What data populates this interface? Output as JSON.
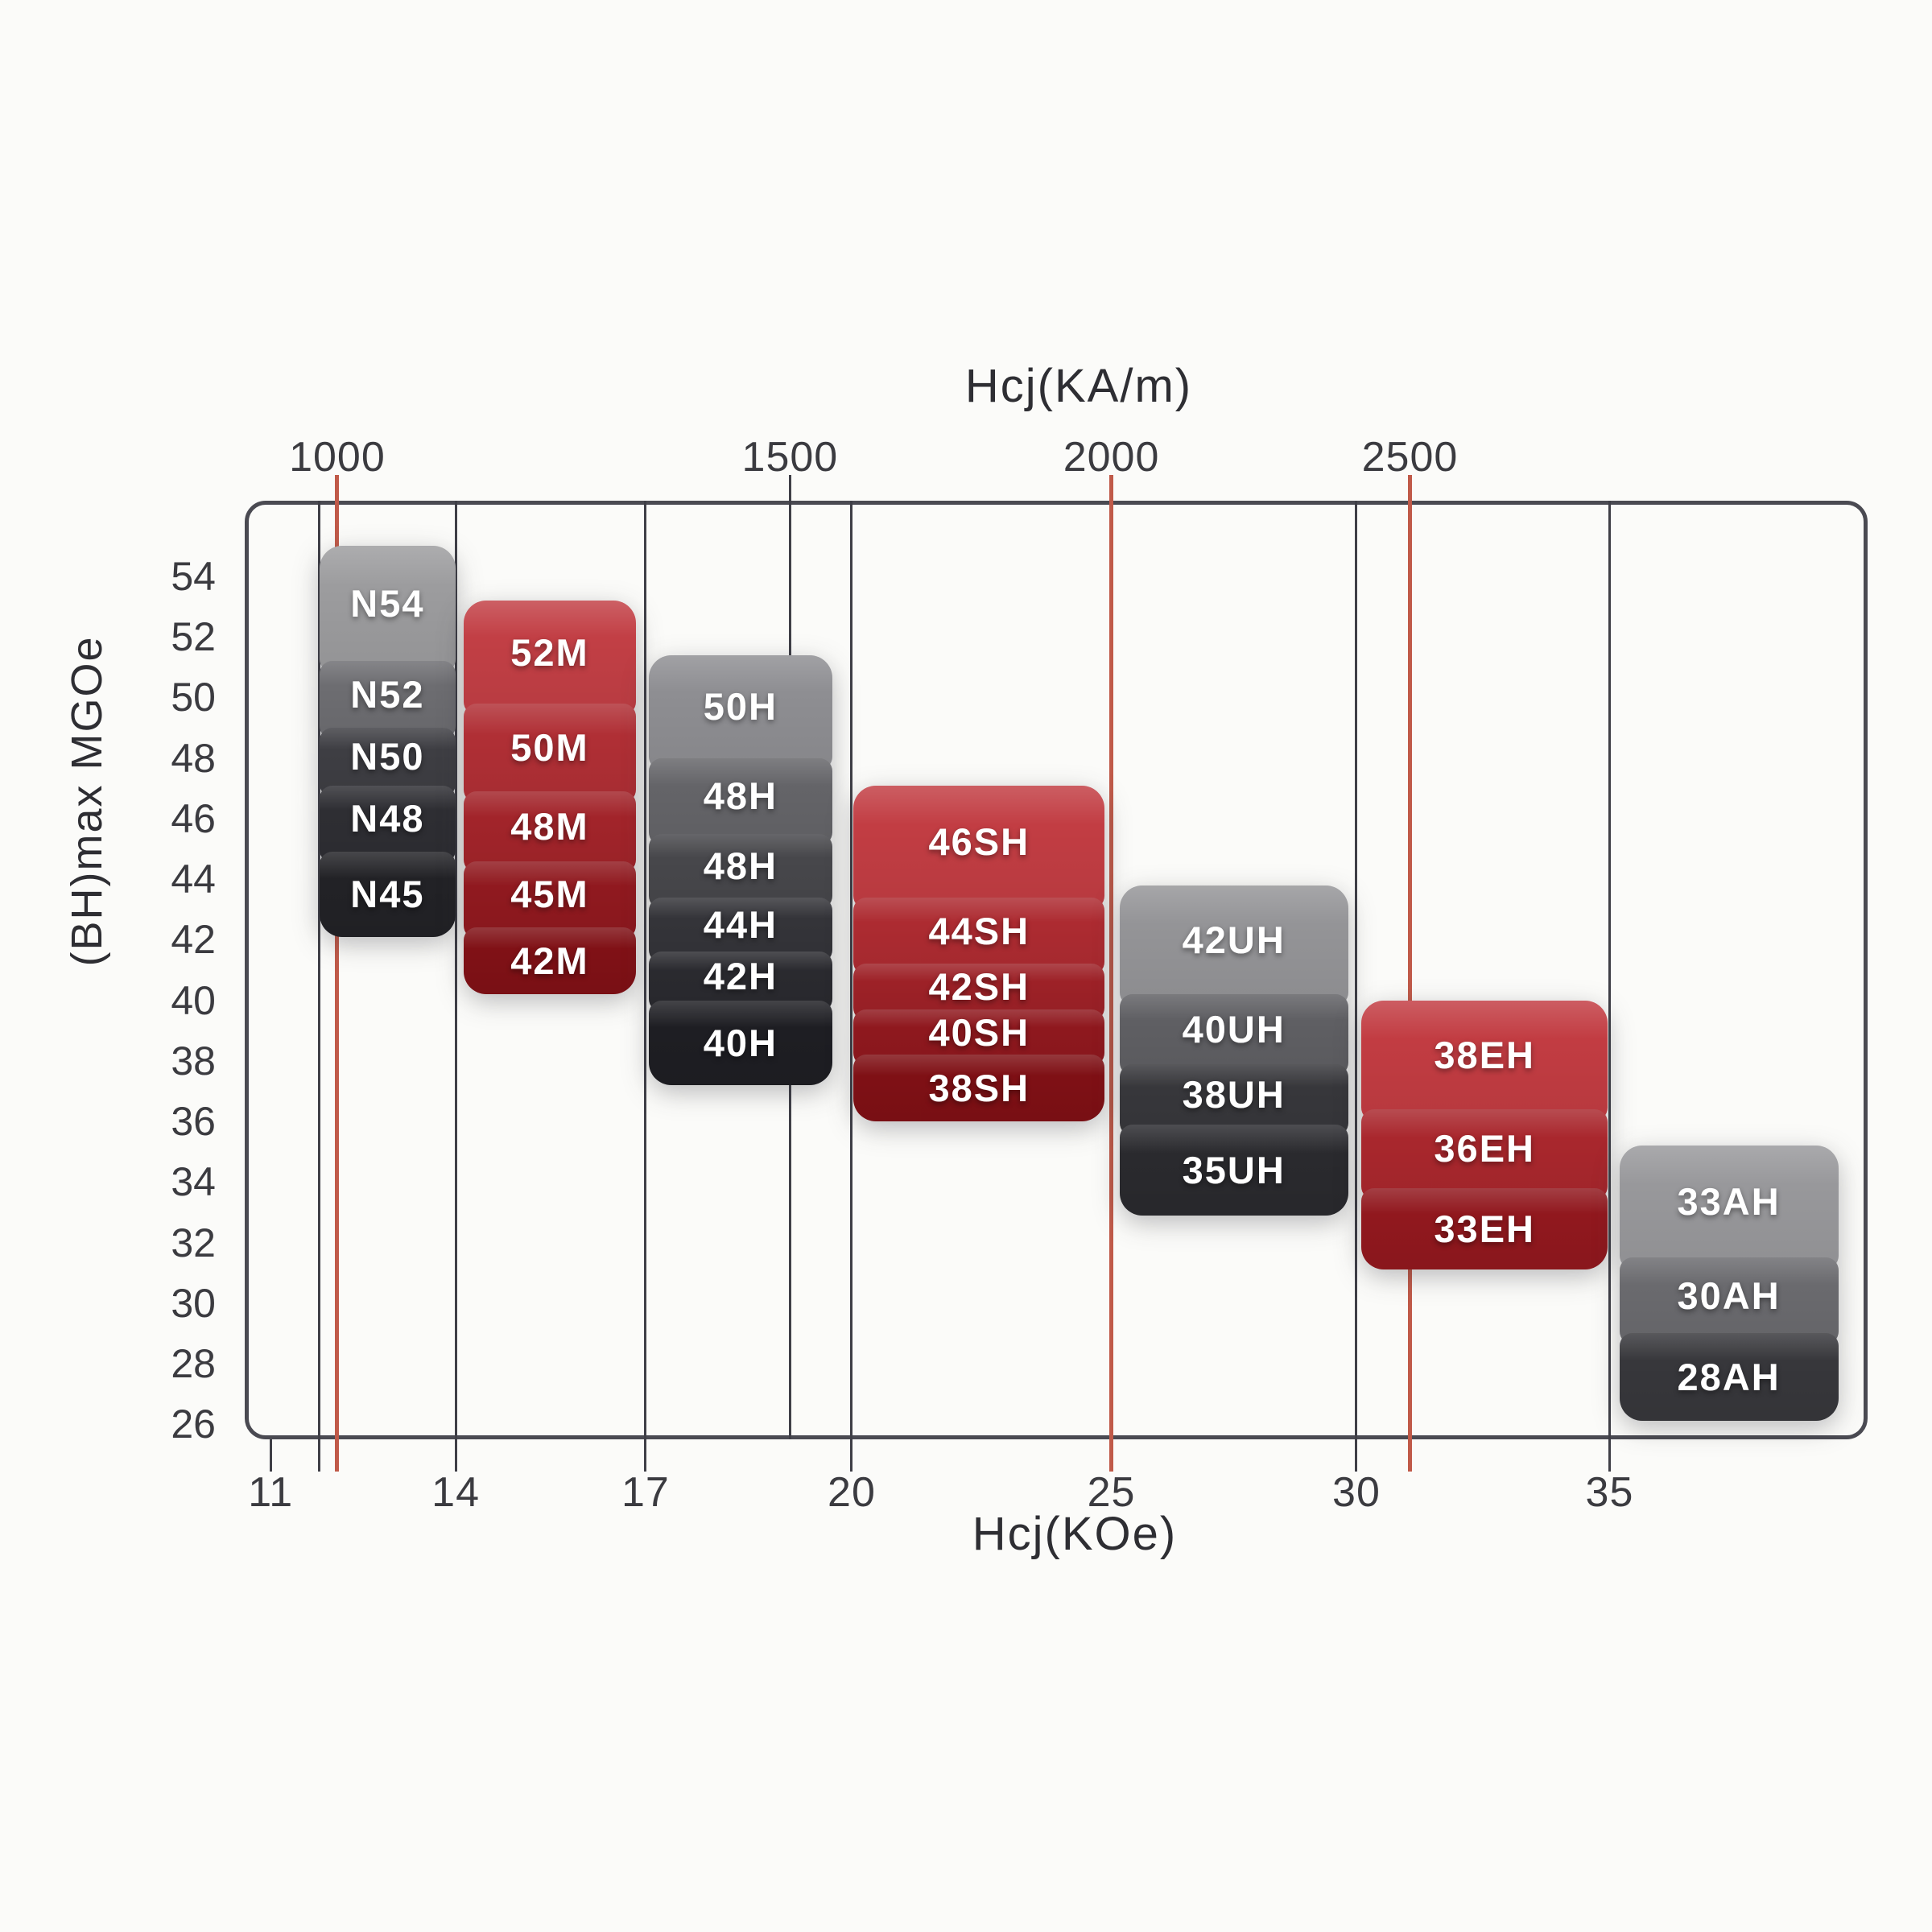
{
  "page": {
    "background": "#fbfbf9"
  },
  "chart_data": {
    "type": "bar",
    "subtype": "floating-grade-range-blocks",
    "title_top_axis": "Hcj(KA/m)",
    "xlabel_bottom_axis": "Hcj(KOe)",
    "ylabel": "(BH)max MGOe",
    "grid": "vertical-only",
    "legend": "none",
    "y_axis": {
      "min": 25.5,
      "max": 56.5,
      "unit": "MGOe",
      "ticks": [
        54,
        52,
        50,
        48,
        46,
        44,
        42,
        40,
        38,
        36,
        34,
        32,
        30,
        28,
        26
      ]
    },
    "x_axis_bottom": {
      "unit": "KOe",
      "ticks": [
        11,
        14,
        17,
        20,
        25,
        30,
        35
      ]
    },
    "x_axis_top": {
      "unit": "KA/m",
      "ticks": [
        1000,
        1500,
        2000,
        2500
      ]
    },
    "colors": {
      "grid_black": "#3f3f47",
      "grid_red": "#c05a49",
      "frame": "#4a4a52",
      "axis_text": "#3b3b40",
      "title_text": "#2e2e33",
      "block_text": "#ffffff"
    },
    "gridlines": [
      {
        "pct": 1.6,
        "color": "black",
        "interior": false,
        "tick_above": false,
        "tick_below": true,
        "top_label": "",
        "bottom_label": "11"
      },
      {
        "pct": 4.6,
        "color": "black",
        "interior": true,
        "tick_above": false,
        "tick_below": true,
        "top_label": "",
        "bottom_label": ""
      },
      {
        "pct": 5.7,
        "color": "red",
        "interior": true,
        "tick_above": true,
        "tick_below": true,
        "top_label": "1000",
        "bottom_label": ""
      },
      {
        "pct": 13.0,
        "color": "black",
        "interior": true,
        "tick_above": false,
        "tick_below": true,
        "top_label": "",
        "bottom_label": "14"
      },
      {
        "pct": 24.7,
        "color": "black",
        "interior": true,
        "tick_above": false,
        "tick_below": true,
        "top_label": "",
        "bottom_label": "17"
      },
      {
        "pct": 33.6,
        "color": "black",
        "interior": true,
        "tick_above": true,
        "tick_below": false,
        "top_label": "1500",
        "bottom_label": ""
      },
      {
        "pct": 37.4,
        "color": "black",
        "interior": true,
        "tick_above": false,
        "tick_below": true,
        "top_label": "",
        "bottom_label": "20"
      },
      {
        "pct": 53.4,
        "color": "red",
        "interior": true,
        "tick_above": true,
        "tick_below": true,
        "top_label": "2000",
        "bottom_label": "25"
      },
      {
        "pct": 68.5,
        "color": "black",
        "interior": true,
        "tick_above": false,
        "tick_below": true,
        "top_label": "",
        "bottom_label": "30"
      },
      {
        "pct": 71.8,
        "color": "red",
        "interior": true,
        "tick_above": true,
        "tick_below": true,
        "top_label": "2500",
        "bottom_label": ""
      },
      {
        "pct": 84.1,
        "color": "black",
        "interior": true,
        "tick_above": false,
        "tick_below": true,
        "top_label": "",
        "bottom_label": "35"
      }
    ],
    "groups": [
      {
        "name": "N",
        "series": "gray",
        "x_from_pct": 4.6,
        "x_to_pct": 13.0,
        "segments": [
          {
            "label": "N54",
            "from": 55.0,
            "to": 51.2,
            "color": "#9c9c9e"
          },
          {
            "label": "N52",
            "from": 51.2,
            "to": 49.0,
            "color": "#6d6d71"
          },
          {
            "label": "N50",
            "from": 49.0,
            "to": 47.1,
            "color": "#3e3e43"
          },
          {
            "label": "N48",
            "from": 47.1,
            "to": 44.9,
            "color": "#2e2e33"
          },
          {
            "label": "N45",
            "from": 44.9,
            "to": 42.1,
            "color": "#222226"
          }
        ]
      },
      {
        "name": "M",
        "series": "red",
        "x_from_pct": 13.5,
        "x_to_pct": 24.1,
        "segments": [
          {
            "label": "52M",
            "from": 53.2,
            "to": 49.8,
            "color": "#c23f45"
          },
          {
            "label": "50M",
            "from": 49.8,
            "to": 46.9,
            "color": "#b02f35"
          },
          {
            "label": "48M",
            "from": 46.9,
            "to": 44.6,
            "color": "#a2242a"
          },
          {
            "label": "45M",
            "from": 44.6,
            "to": 42.4,
            "color": "#90191f"
          },
          {
            "label": "42M",
            "from": 42.4,
            "to": 40.2,
            "color": "#801116"
          }
        ]
      },
      {
        "name": "H",
        "series": "gray",
        "x_from_pct": 24.9,
        "x_to_pct": 36.2,
        "segments": [
          {
            "label": "50H",
            "from": 51.4,
            "to": 48.0,
            "color": "#8e8e92"
          },
          {
            "label": "48H",
            "from": 48.0,
            "to": 45.5,
            "color": "#646468"
          },
          {
            "label": "48H",
            "from": 45.5,
            "to": 43.4,
            "color": "#47474b"
          },
          {
            "label": "44H",
            "from": 43.4,
            "to": 41.6,
            "color": "#343439"
          },
          {
            "label": "42H",
            "from": 41.6,
            "to": 40.0,
            "color": "#2a2a2f"
          },
          {
            "label": "40H",
            "from": 40.0,
            "to": 37.2,
            "color": "#1e1e23"
          }
        ]
      },
      {
        "name": "SH",
        "series": "red",
        "x_from_pct": 37.5,
        "x_to_pct": 53.0,
        "segments": [
          {
            "label": "46SH",
            "from": 47.1,
            "to": 43.4,
            "color": "#c23d43"
          },
          {
            "label": "44SH",
            "from": 43.4,
            "to": 41.2,
            "color": "#ad2b31"
          },
          {
            "label": "42SH",
            "from": 41.2,
            "to": 39.7,
            "color": "#9d2127"
          },
          {
            "label": "40SH",
            "from": 39.7,
            "to": 38.2,
            "color": "#8f181e"
          },
          {
            "label": "38SH",
            "from": 38.2,
            "to": 36.0,
            "color": "#7f1015"
          }
        ]
      },
      {
        "name": "UH",
        "series": "gray",
        "x_from_pct": 53.9,
        "x_to_pct": 68.0,
        "segments": [
          {
            "label": "42UH",
            "from": 43.8,
            "to": 40.2,
            "color": "#949497"
          },
          {
            "label": "40UH",
            "from": 40.2,
            "to": 37.9,
            "color": "#5f5f63"
          },
          {
            "label": "38UH",
            "from": 37.9,
            "to": 35.9,
            "color": "#37373b"
          },
          {
            "label": "35UH",
            "from": 35.9,
            "to": 32.9,
            "color": "#2a2a2e"
          }
        ]
      },
      {
        "name": "EH",
        "series": "red",
        "x_from_pct": 68.8,
        "x_to_pct": 84.0,
        "segments": [
          {
            "label": "38EH",
            "from": 40.0,
            "to": 36.4,
            "color": "#c23c42"
          },
          {
            "label": "36EH",
            "from": 36.4,
            "to": 33.8,
            "color": "#a9272d"
          },
          {
            "label": "33EH",
            "from": 33.8,
            "to": 31.1,
            "color": "#91181e"
          }
        ]
      },
      {
        "name": "AH",
        "series": "gray",
        "x_from_pct": 84.7,
        "x_to_pct": 98.2,
        "segments": [
          {
            "label": "33AH",
            "from": 35.2,
            "to": 31.5,
            "color": "#98989b"
          },
          {
            "label": "30AH",
            "from": 31.5,
            "to": 29.0,
            "color": "#6a6a6e"
          },
          {
            "label": "28AH",
            "from": 29.0,
            "to": 26.1,
            "color": "#37373b"
          }
        ]
      }
    ]
  }
}
